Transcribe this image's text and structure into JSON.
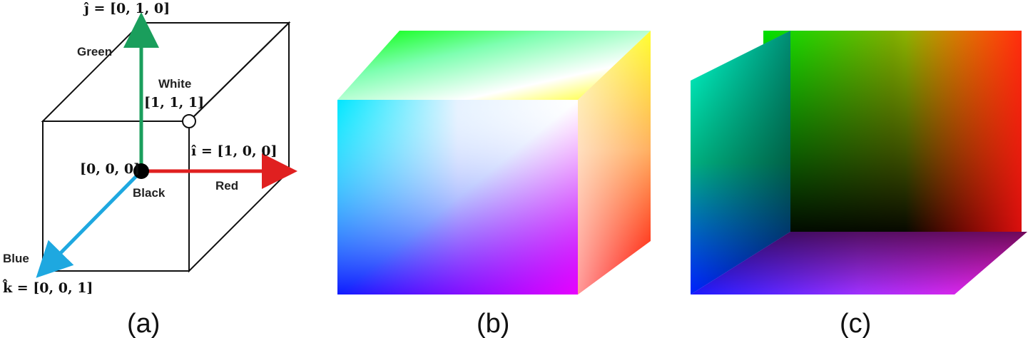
{
  "panel_a": {
    "j_vector": "ĵ = [0, 1, 0]",
    "green_label": "Green",
    "white_label": "White",
    "white_coord": "[1, 1, 1]",
    "i_vector": "î = [1, 0, 0]",
    "origin_coord": "[0, 0, 0]",
    "black_label": "Black",
    "red_label": "Red",
    "blue_label": "Blue",
    "k_vector": "k̂ = [0, 0, 1]",
    "colors": {
      "green_axis": "#1a9e5c",
      "red_axis": "#e02020",
      "blue_axis": "#1ea8e0"
    }
  },
  "captions": {
    "a": "(a)",
    "b": "(b)",
    "c": "(c)"
  }
}
